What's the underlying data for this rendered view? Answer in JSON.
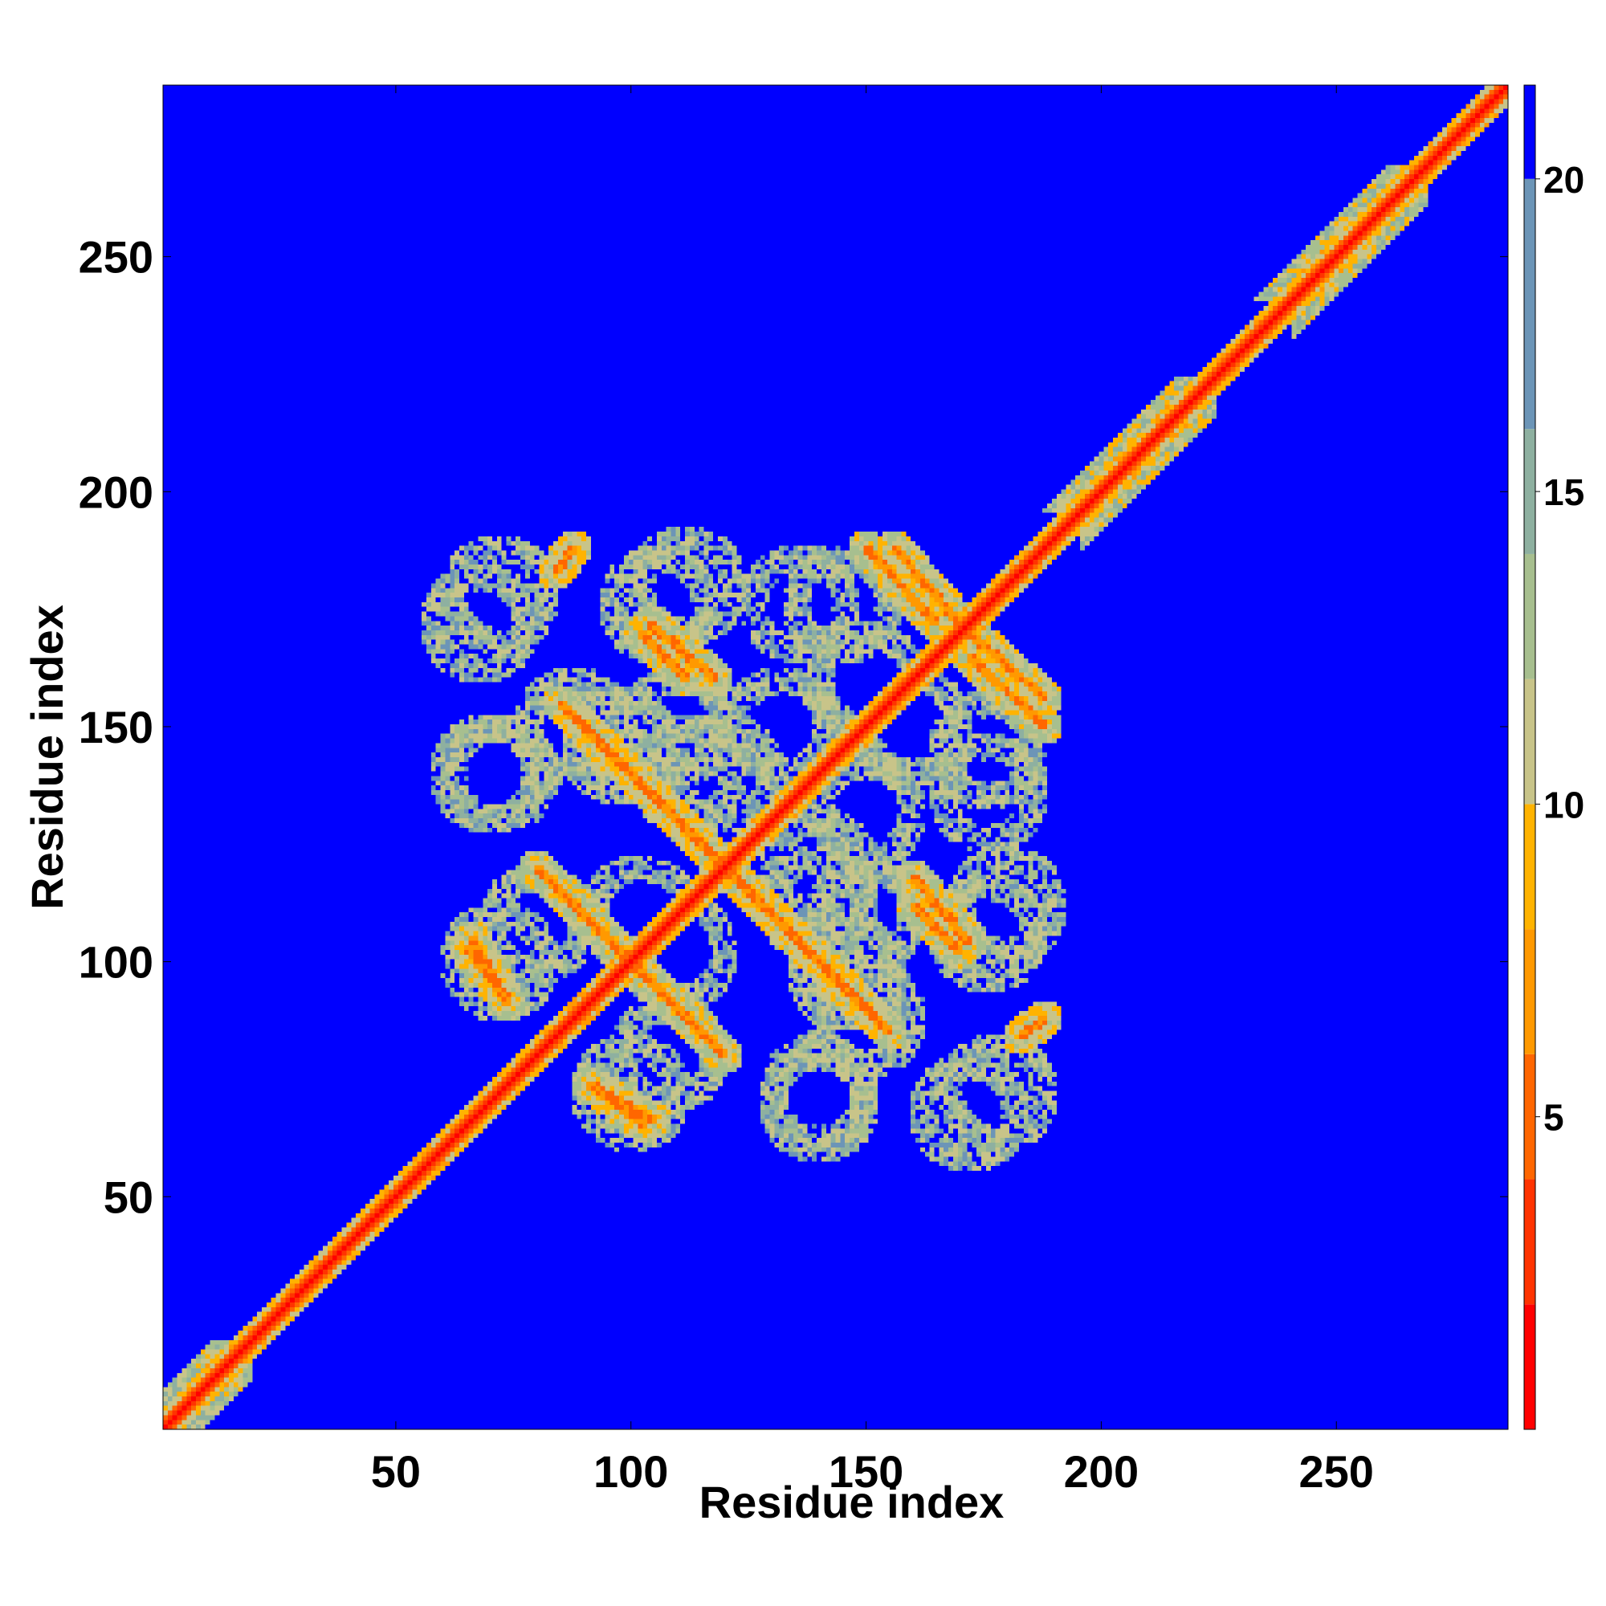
{
  "chart_data": {
    "type": "heatmap",
    "title": "",
    "xlabel": "Residue index",
    "ylabel": "Residue index",
    "xlim": [
      1,
      286
    ],
    "ylim": [
      1,
      286
    ],
    "x_ticks": [
      50,
      100,
      150,
      200,
      250
    ],
    "y_ticks": [
      50,
      100,
      150,
      200,
      250
    ],
    "colorbar": {
      "range": [
        0,
        21.5
      ],
      "ticks": [
        5,
        10,
        15,
        20
      ],
      "saturated_above": 20,
      "colors": [
        "#ff0000",
        "#ff3300",
        "#ff6600",
        "#ff9900",
        "#ffb300",
        "#c8c489",
        "#a7bf8f",
        "#8eb0a0",
        "#6c95b7",
        "#0000ff"
      ]
    },
    "matrix_symmetric": true,
    "matrix_description_values": {
      "diagonal": 1.5,
      "background": 21.5
    },
    "contact_stripes": [
      {
        "x": [
          100,
          120
        ],
        "y": [
          100,
          80
        ],
        "level": "near"
      },
      {
        "x": [
          85,
          120
        ],
        "y": [
          155,
          120
        ],
        "level": "near"
      },
      {
        "x": [
          120,
          152
        ],
        "y": [
          120,
          88
        ],
        "level": "near"
      },
      {
        "x": [
          102,
          112
        ],
        "y": [
          170,
          160
        ],
        "level": "near"
      },
      {
        "x": [
          150,
          165
        ],
        "y": [
          188,
          172
        ],
        "level": "near"
      },
      {
        "x": [
          172,
          188
        ],
        "y": [
          170,
          156
        ],
        "level": "near"
      },
      {
        "x": [
          160,
          172
        ],
        "y": [
          118,
          104
        ],
        "level": "near"
      },
      {
        "x": [
          65,
          73
        ],
        "y": [
          103,
          93
        ],
        "level": "near"
      },
      {
        "x": [
          91,
          105
        ],
        "y": [
          74,
          66
        ],
        "level": "near"
      },
      {
        "x": [
          183,
          188
        ],
        "y": [
          84,
          88
        ],
        "level": "near"
      },
      {
        "x": [
          84,
          88
        ],
        "y": [
          183,
          188
        ],
        "level": "near"
      }
    ],
    "halo_blobs": [
      {
        "x": 68,
        "y": 172
      },
      {
        "x": 106,
        "y": 176
      },
      {
        "x": 145,
        "y": 176
      },
      {
        "x": 70,
        "y": 140
      },
      {
        "x": 98,
        "y": 146
      },
      {
        "x": 132,
        "y": 150
      },
      {
        "x": 80,
        "y": 108
      },
      {
        "x": 102,
        "y": 110
      },
      {
        "x": 140,
        "y": 112
      },
      {
        "x": 176,
        "y": 136
      },
      {
        "x": 180,
        "y": 112
      },
      {
        "x": 140,
        "y": 72
      },
      {
        "x": 178,
        "y": 72
      },
      {
        "x": 100,
        "y": 72
      },
      {
        "x": 150,
        "y": 88
      },
      {
        "x": 120,
        "y": 140
      },
      {
        "x": 160,
        "y": 150
      },
      {
        "x": 110,
        "y": 150
      }
    ]
  }
}
